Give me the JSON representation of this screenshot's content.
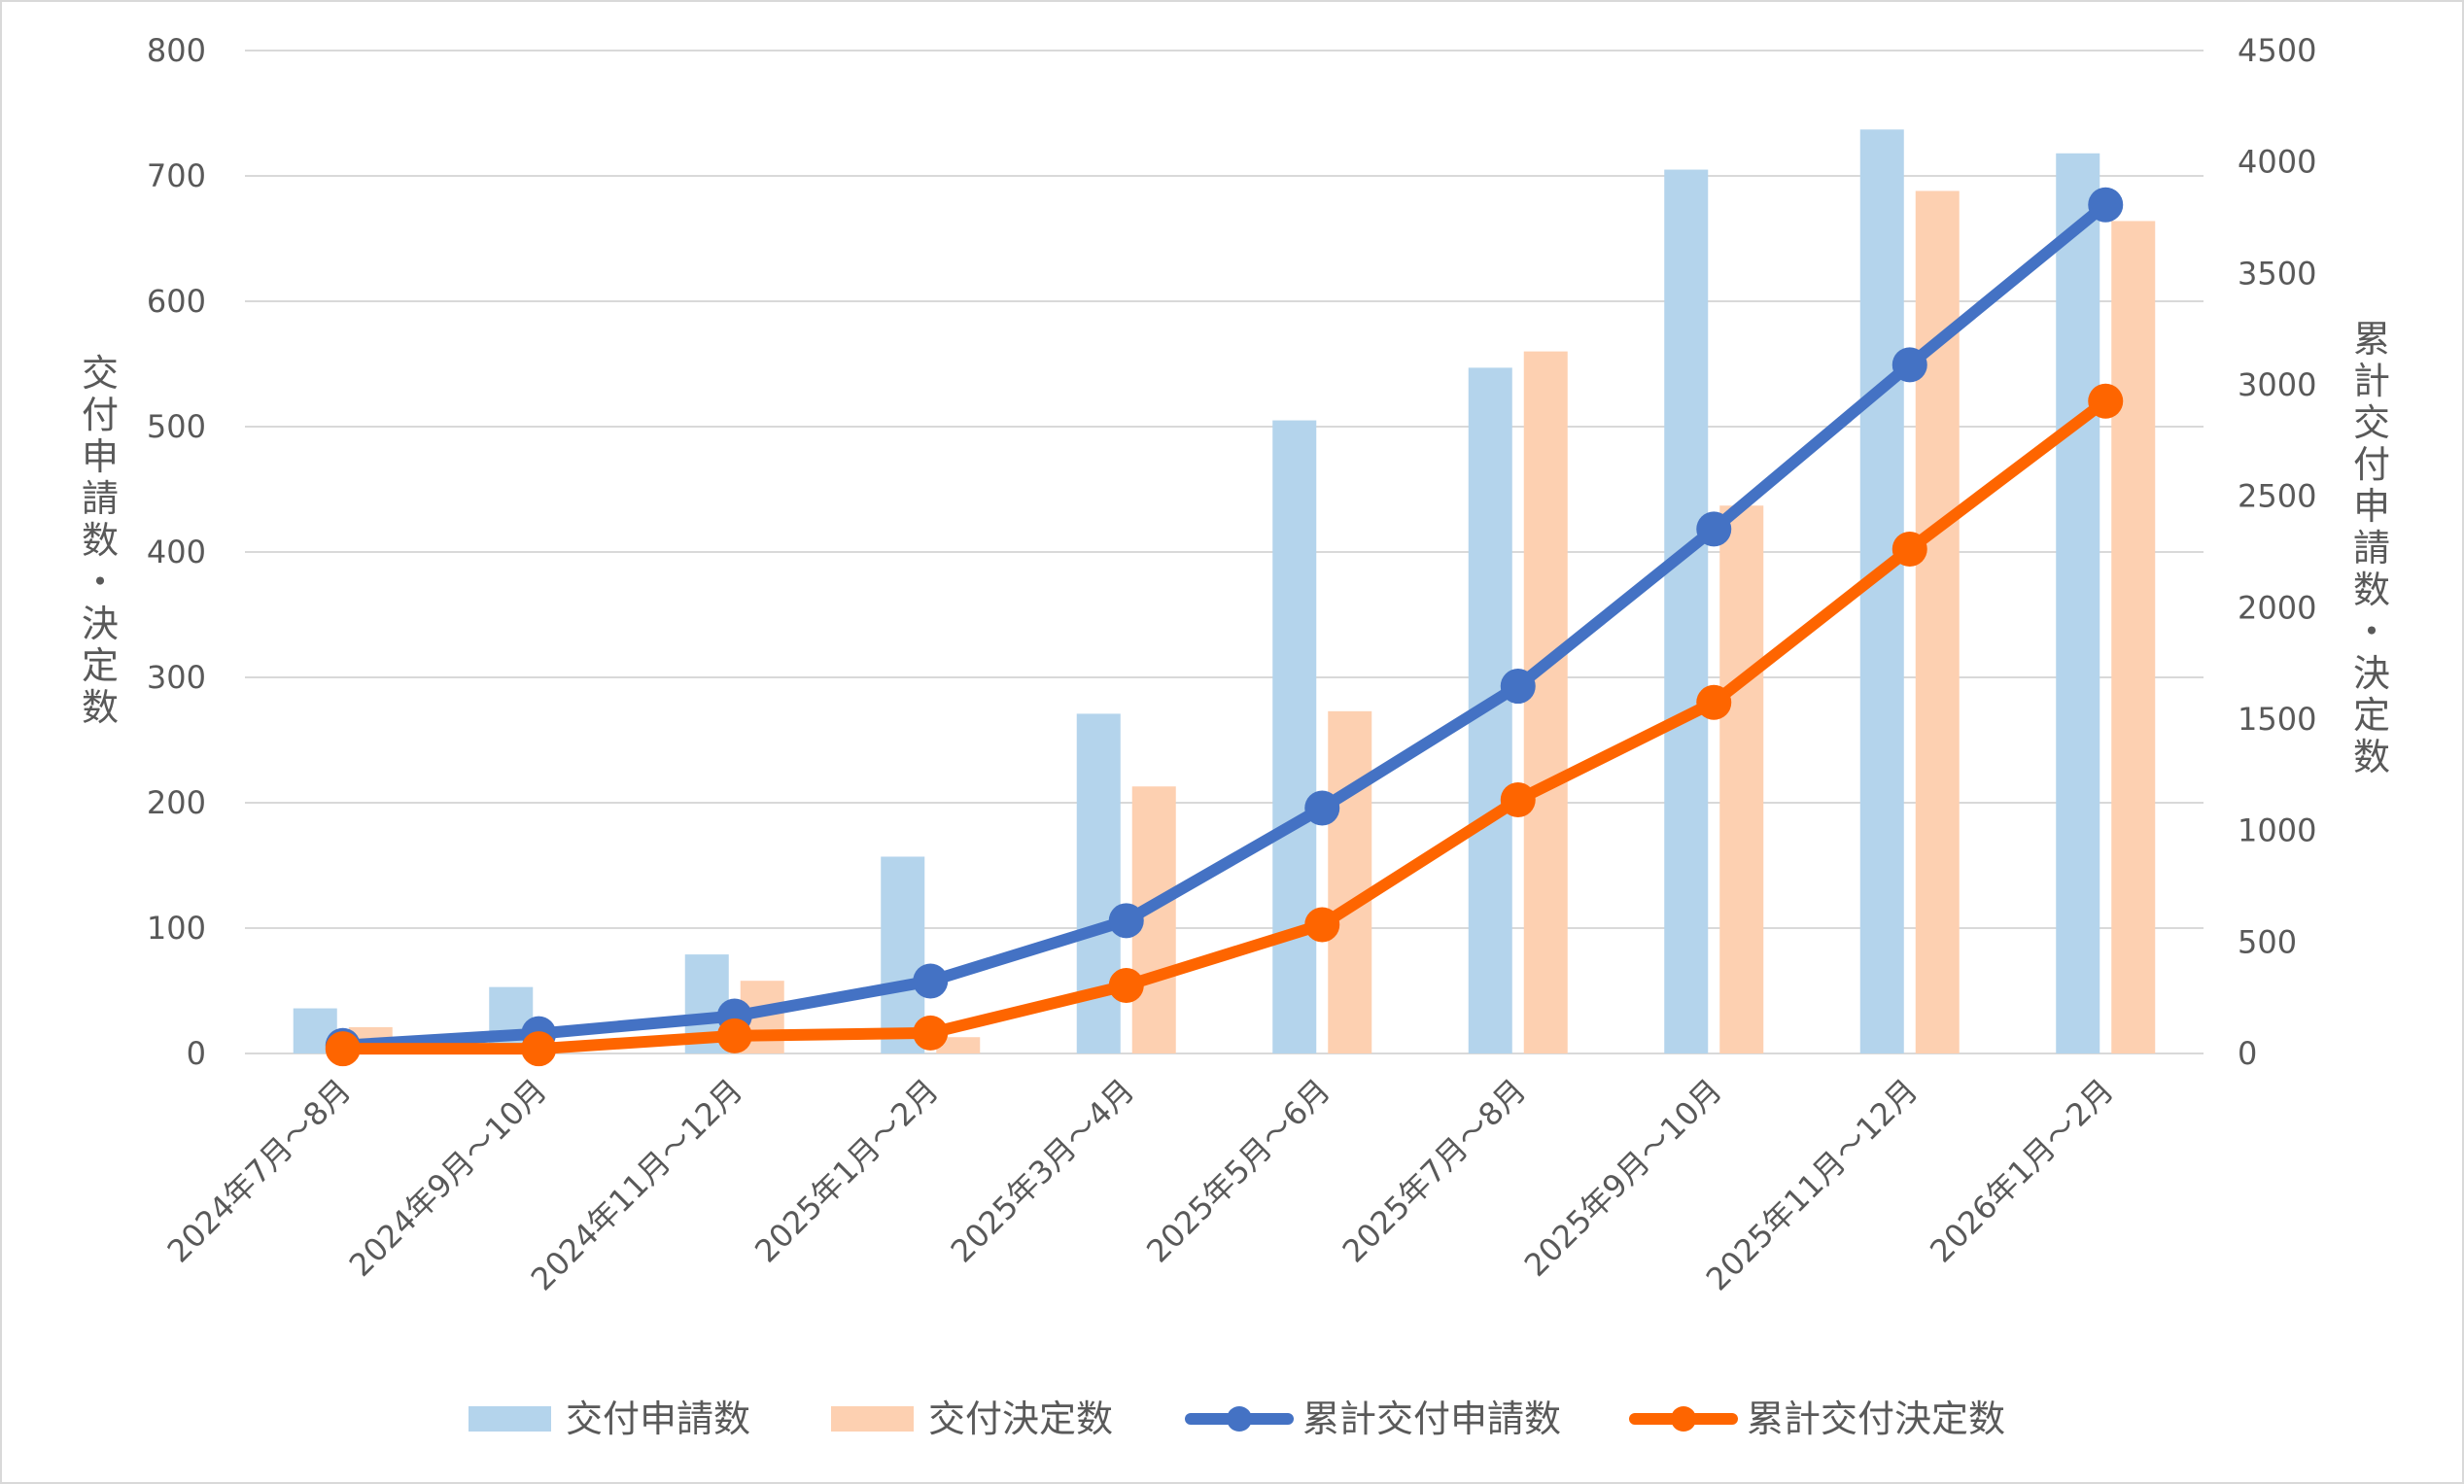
{
  "chart_data": {
    "type": "bar",
    "categories": [
      "2024年7月～8月",
      "2024年9月～10月",
      "2024年11月～12月",
      "2025年1月～2月",
      "2025年3月～4月",
      "2025年5月～6月",
      "2025年7月～8月",
      "2025年9月～10月",
      "2025年11月～12月",
      "2026年1月～2月"
    ],
    "series": [
      {
        "name": "交付申請数",
        "type": "bar",
        "axis": "left",
        "color": "#b4d4ec",
        "values": [
          36,
          53,
          79,
          157,
          271,
          505,
          547,
          705,
          737,
          718
        ]
      },
      {
        "name": "交付決定数",
        "type": "bar",
        "axis": "left",
        "color": "#fdd0b1",
        "values": [
          21,
          0,
          58,
          13,
          213,
          273,
          560,
          437,
          688,
          664
        ]
      },
      {
        "name": "累計交付申請数",
        "type": "line",
        "axis": "right",
        "color": "#4472c4",
        "values": [
          36,
          89,
          168,
          325,
          596,
          1101,
          1648,
          2353,
          3090,
          3808
        ]
      },
      {
        "name": "累計交付決定数",
        "type": "line",
        "axis": "right",
        "color": "#fe6500",
        "values": [
          21,
          21,
          79,
          92,
          305,
          578,
          1138,
          1575,
          2263,
          2927
        ]
      }
    ],
    "y_left": {
      "label": "交付申請数・決定数",
      "ylim": [
        0,
        800
      ],
      "ticks": [
        "0",
        "100",
        "200",
        "300",
        "400",
        "500",
        "600",
        "700",
        "800"
      ]
    },
    "y_right": {
      "label": "累計交付申請数・決定数",
      "ylim": [
        0,
        4500
      ],
      "ticks": [
        "0",
        "500",
        "1000",
        "1500",
        "2000",
        "2500",
        "3000",
        "3500",
        "4000",
        "4500"
      ]
    },
    "grid": true,
    "legend_position": "bottom"
  },
  "colors": {
    "grid": "#d9d9d9",
    "text": "#595959"
  }
}
